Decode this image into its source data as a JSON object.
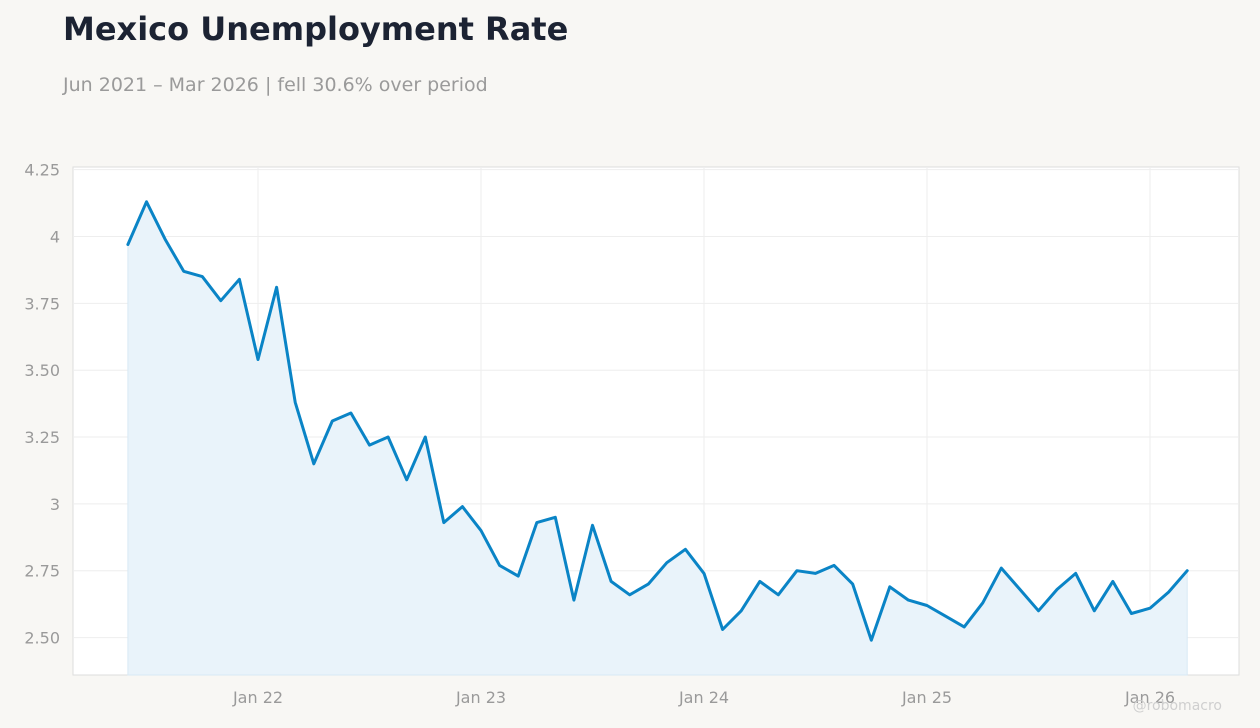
{
  "chart_data": {
    "type": "area",
    "title": "Mexico Unemployment Rate",
    "subtitle": "Jun 2021 – Mar 2026 | fell 30.6% over period",
    "xlabel": "",
    "ylabel": "",
    "ylim": [
      2.36,
      4.26
    ],
    "y_ticks": [
      2.5,
      2.75,
      3,
      3.25,
      3.5,
      3.75,
      4,
      4.25
    ],
    "y_tick_labels": [
      "2.50",
      "2.75",
      "3",
      "3.25",
      "3.50",
      "3.75",
      "4",
      "4.25"
    ],
    "x_ticks": [
      "2022-01-01",
      "2023-01-01",
      "2024-01-01",
      "2025-01-01",
      "2026-01-01"
    ],
    "x_tick_labels": [
      "Jan 22",
      "Jan 23",
      "Jan 24",
      "Jan 25",
      "Jan 26"
    ],
    "grid": true,
    "line_color": "#0a84c6",
    "fill_color": "#e9f3fa",
    "watermark": "@robomacro",
    "series": [
      {
        "x": [
          "2021-06",
          "2021-07",
          "2021-08",
          "2021-09",
          "2021-10",
          "2021-11",
          "2021-12",
          "2022-01",
          "2022-02",
          "2022-03",
          "2022-04",
          "2022-05",
          "2022-06",
          "2022-07",
          "2022-08",
          "2022-09",
          "2022-10",
          "2022-11",
          "2022-12",
          "2023-01",
          "2023-02",
          "2023-03",
          "2023-04",
          "2023-05",
          "2023-06",
          "2023-07",
          "2023-08",
          "2023-09",
          "2023-10",
          "2023-11",
          "2023-12",
          "2024-01",
          "2024-02",
          "2024-03",
          "2024-04",
          "2024-05",
          "2024-06",
          "2024-07",
          "2024-08",
          "2024-09",
          "2024-10",
          "2024-11",
          "2024-12",
          "2025-01",
          "2025-02",
          "2025-03",
          "2025-04",
          "2025-05",
          "2025-06",
          "2025-07",
          "2025-08",
          "2025-09",
          "2025-10",
          "2025-11",
          "2025-12",
          "2026-01",
          "2026-02",
          "2026-03"
        ],
        "values": [
          3.97,
          4.13,
          3.99,
          3.87,
          3.85,
          3.76,
          3.84,
          3.54,
          3.81,
          3.38,
          3.15,
          3.31,
          3.34,
          3.22,
          3.25,
          3.09,
          3.25,
          2.93,
          2.99,
          2.9,
          2.77,
          2.73,
          2.93,
          2.95,
          2.64,
          2.92,
          2.71,
          2.66,
          2.7,
          2.78,
          2.83,
          2.74,
          2.53,
          2.6,
          2.71,
          2.66,
          2.75,
          2.74,
          2.77,
          2.7,
          2.49,
          2.69,
          2.64,
          2.62,
          2.58,
          2.54,
          2.63,
          2.76,
          2.68,
          2.6,
          2.68,
          2.74,
          2.6,
          2.71,
          2.59,
          2.61,
          2.67,
          2.75
        ]
      }
    ]
  }
}
